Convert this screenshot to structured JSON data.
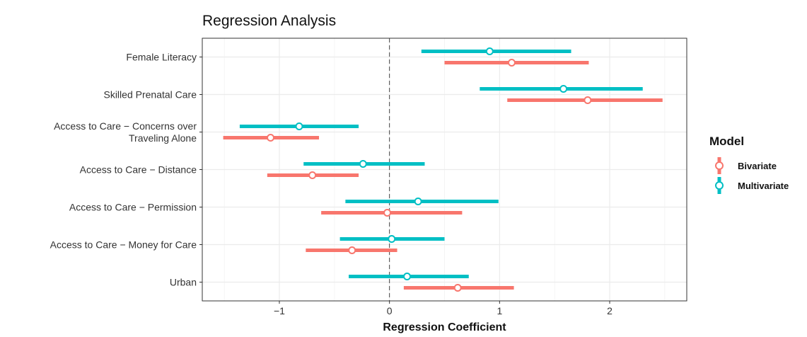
{
  "chart_data": {
    "type": "forest",
    "title": "Regression Analysis",
    "xlabel": "Regression Coefficient",
    "ylabel": "",
    "xlim": [
      -1.7,
      2.7
    ],
    "xticks": [
      -1,
      0,
      1,
      2
    ],
    "xtick_labels": [
      "−1",
      "0",
      "1",
      "2"
    ],
    "reference_line": 0,
    "grid": true,
    "legend": {
      "title": "Model",
      "position": "right"
    },
    "categories": [
      "Female Literacy",
      "Skilled Prenatal Care",
      "Access to Care − Concerns over Traveling Alone",
      "Access to Care − Distance",
      "Access to Care − Permission",
      "Access to Care − Money for Care",
      "Urban"
    ],
    "category_labels": [
      [
        "Female Literacy"
      ],
      [
        "Skilled Prenatal Care"
      ],
      [
        "Access to Care − Concerns over",
        "Traveling Alone"
      ],
      [
        "Access to Care − Distance"
      ],
      [
        "Access to Care − Permission"
      ],
      [
        "Access to Care − Money for Care"
      ],
      [
        "Urban"
      ]
    ],
    "series": [
      {
        "name": "Bivariate",
        "color": "#f8766d",
        "estimate": [
          1.11,
          1.8,
          -1.08,
          -0.7,
          -0.02,
          -0.34,
          0.62
        ],
        "lower": [
          0.5,
          1.07,
          -1.51,
          -1.11,
          -0.62,
          -0.76,
          0.13
        ],
        "upper": [
          1.81,
          2.48,
          -0.64,
          -0.28,
          0.66,
          0.07,
          1.13
        ]
      },
      {
        "name": "Multivariate",
        "color": "#00bfc4",
        "estimate": [
          0.91,
          1.58,
          -0.82,
          -0.24,
          0.26,
          0.02,
          0.16
        ],
        "lower": [
          0.29,
          0.82,
          -1.36,
          -0.78,
          -0.4,
          -0.45,
          -0.37
        ],
        "upper": [
          1.65,
          2.3,
          -0.28,
          0.32,
          0.99,
          0.5,
          0.72
        ]
      }
    ]
  }
}
